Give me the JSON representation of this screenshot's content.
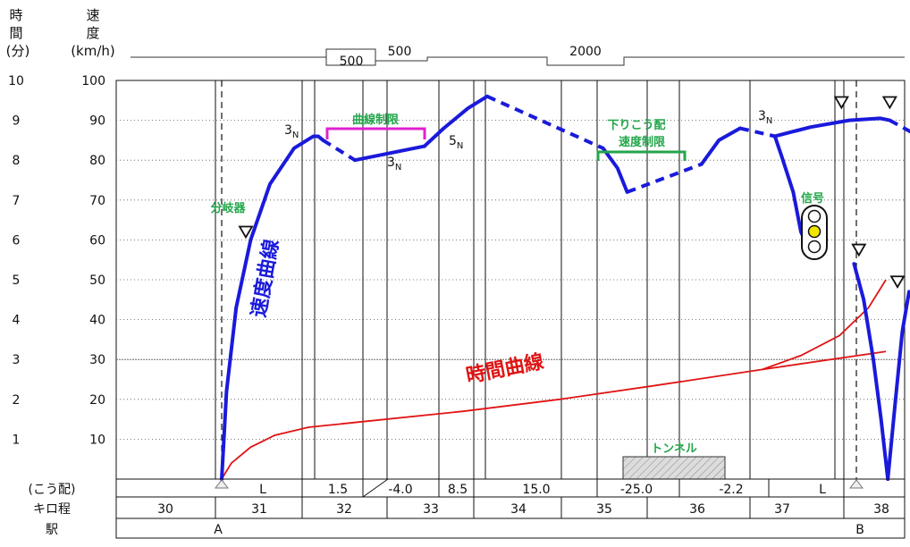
{
  "header": {
    "time_label": [
      "時",
      "間",
      "(分)"
    ],
    "speed_label": [
      "速",
      "度",
      "(km/h)"
    ]
  },
  "radius_track": [
    {
      "label": "500"
    },
    {
      "label": "500"
    },
    {
      "label": "2000"
    }
  ],
  "row_labels": {
    "gradient": "(こう配)",
    "kilometer": "キロ程",
    "station": "駅"
  },
  "gradients": [
    "L",
    "1.5",
    "-4.0",
    "8.5",
    "15.0",
    "-25.0",
    "-2.2",
    "L"
  ],
  "kilometer_posts": [
    "30",
    "31",
    "32",
    "33",
    "34",
    "35",
    "36",
    "37",
    "38"
  ],
  "stations": [
    "A",
    "B"
  ],
  "annotations": {
    "junction": "分岐器",
    "curve_limit": "曲線制限",
    "downgrade_limit_1": "下りこう配",
    "downgrade_limit_2": "速度制限",
    "signal": "信号",
    "tunnel": "トンネル",
    "speed_curve": "速度曲線",
    "time_curve": "時間曲線",
    "notch": [
      {
        "num": "3",
        "sub": "N"
      },
      {
        "num": "3",
        "sub": "N"
      },
      {
        "num": "5",
        "sub": "N"
      },
      {
        "num": "3",
        "sub": "N"
      }
    ]
  },
  "colors": {
    "speed_curve": "#1a1adb",
    "time_curve": "#e01414",
    "green_label": "#22a64a",
    "curve_limit": "#e020d0",
    "signal_yellow": "#f2e600",
    "tunnel_fill": "#d8d8d8"
  },
  "chart_data": {
    "type": "line",
    "time_axis": {
      "label": "時間(分)",
      "range": [
        0,
        10
      ],
      "ticks": [
        1,
        2,
        3,
        4,
        5,
        6,
        7,
        8,
        9,
        10
      ]
    },
    "speed_axis": {
      "label": "速度(km/h)",
      "range": [
        0,
        100
      ],
      "ticks": [
        10,
        20,
        30,
        40,
        50,
        60,
        70,
        80,
        90,
        100
      ]
    },
    "x_axis": {
      "label": "キロ程",
      "range": [
        30,
        38.5
      ]
    },
    "series": [
      {
        "name": "速度曲線",
        "segments": [
          {
            "style": "solid",
            "x": [
              31.0,
              31.05,
              31.15,
              31.3,
              31.5,
              31.75,
              31.95,
              32.0,
              32.05
            ],
            "y": [
              0,
              22,
              43,
              60,
              74,
              83,
              86,
              86,
              85
            ]
          },
          {
            "style": "dashed",
            "x": [
              32.05,
              32.38
            ],
            "y": [
              85,
              80
            ]
          },
          {
            "style": "solid",
            "x": [
              32.38,
              33.1
            ],
            "y": [
              80,
              83.5
            ]
          },
          {
            "style": "solid",
            "x": [
              33.1,
              33.3,
              33.55,
              33.75
            ],
            "y": [
              83.5,
              88,
              93,
              96
            ]
          },
          {
            "style": "dashed",
            "x": [
              33.75,
              34.95
            ],
            "y": [
              96,
              83
            ]
          },
          {
            "style": "solid",
            "x": [
              34.95,
              35.1,
              35.2
            ],
            "y": [
              83,
              78,
              72
            ]
          },
          {
            "style": "dashed",
            "x": [
              35.2,
              35.97
            ],
            "y": [
              72,
              79
            ]
          },
          {
            "style": "solid",
            "x": [
              35.97,
              36.15,
              36.37
            ],
            "y": [
              79,
              85,
              88
            ]
          },
          {
            "style": "dashed",
            "x": [
              36.37,
              36.73
            ],
            "y": [
              88,
              86
            ]
          },
          {
            "style": "solid",
            "x": [
              36.73,
              36.8,
              36.92,
              37.0,
              37.1
            ],
            "y": [
              86,
              81,
              72,
              62,
              57
            ]
          },
          {
            "style": "solid",
            "x": [
              36.73,
              37.1,
              37.5,
              37.82,
              37.92
            ],
            "y": [
              86,
              88.3,
              90,
              90.5,
              90
            ]
          },
          {
            "style": "dashed",
            "x": [
              37.92,
              38.22
            ],
            "y": [
              90,
              86
            ]
          },
          {
            "style": "solid",
            "x": [
              37.55,
              37.65,
              37.75,
              37.83,
              37.9
            ],
            "y": [
              54,
              45,
              30,
              15,
              0
            ]
          },
          {
            "style": "solid",
            "x": [
              37.9,
              37.98,
              38.05,
              38.12,
              38.22
            ],
            "y": [
              0,
              20,
              37,
              47,
              46
            ]
          }
        ]
      },
      {
        "name": "時間曲線",
        "segments": [
          {
            "style": "solid",
            "x": [
              31.0,
              31.1,
              31.3,
              31.55,
              31.9,
              32.5,
              33.5,
              34.5,
              35.5,
              36.6,
              37.88
            ],
            "y": [
              0,
              0.4,
              0.8,
              1.1,
              1.3,
              1.45,
              1.7,
              2.0,
              2.35,
              2.75,
              3.2
            ]
          },
          {
            "style": "solid",
            "x": [
              36.6,
              37.0,
              37.4,
              37.7,
              37.88
            ],
            "y": [
              2.75,
              3.1,
              3.6,
              4.3,
              5.0
            ]
          }
        ]
      }
    ],
    "limit_markers": [
      {
        "x": 31.25,
        "y": 62
      },
      {
        "x": 37.42,
        "y": 94.5
      },
      {
        "x": 37.92,
        "y": 94.5
      },
      {
        "x": 37.6,
        "y": 57.5
      },
      {
        "x": 38.0,
        "y": 49.5
      }
    ],
    "gradient_section_bounds": [
      31.35,
      31.95,
      32.55,
      33.1,
      33.55,
      34.55,
      35.55,
      36.55,
      37.55,
      38.2
    ]
  }
}
